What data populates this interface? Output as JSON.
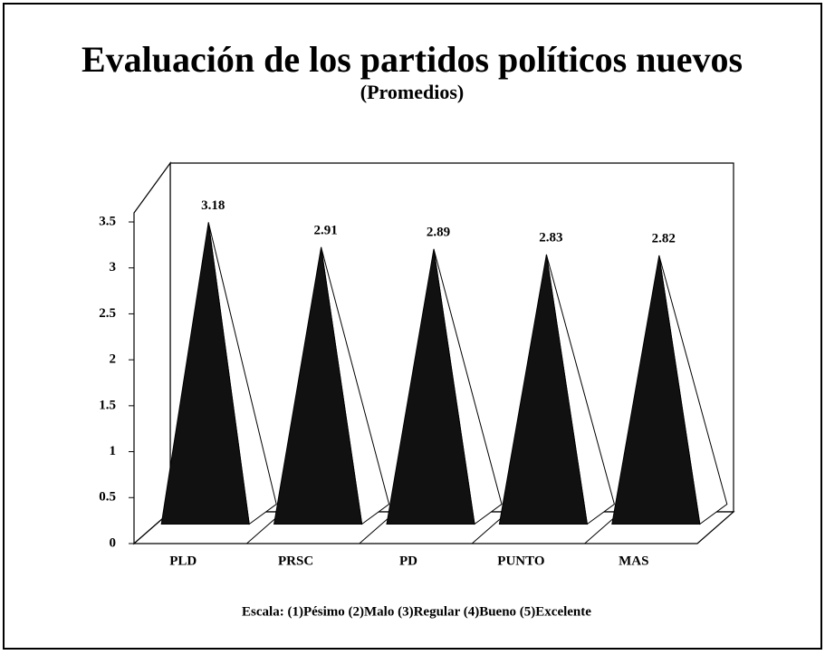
{
  "chart_data": {
    "type": "pyramid",
    "title": "Evaluación de los partidos políticos nuevos",
    "subtitle": "(Promedios)",
    "categories": [
      "PLD",
      "PRSC",
      "PD",
      "PUNTO",
      "MAS"
    ],
    "values": [
      3.18,
      2.91,
      2.89,
      2.83,
      2.82
    ],
    "color": "#111111",
    "ylim": [
      0,
      3.5
    ],
    "yticks": [
      0,
      0.5,
      1,
      1.5,
      2,
      2.5,
      3,
      3.5
    ],
    "footnote": "Escala: (1)Pésimo (2)Malo (3)Regular (4)Bueno (5)Excelente"
  }
}
